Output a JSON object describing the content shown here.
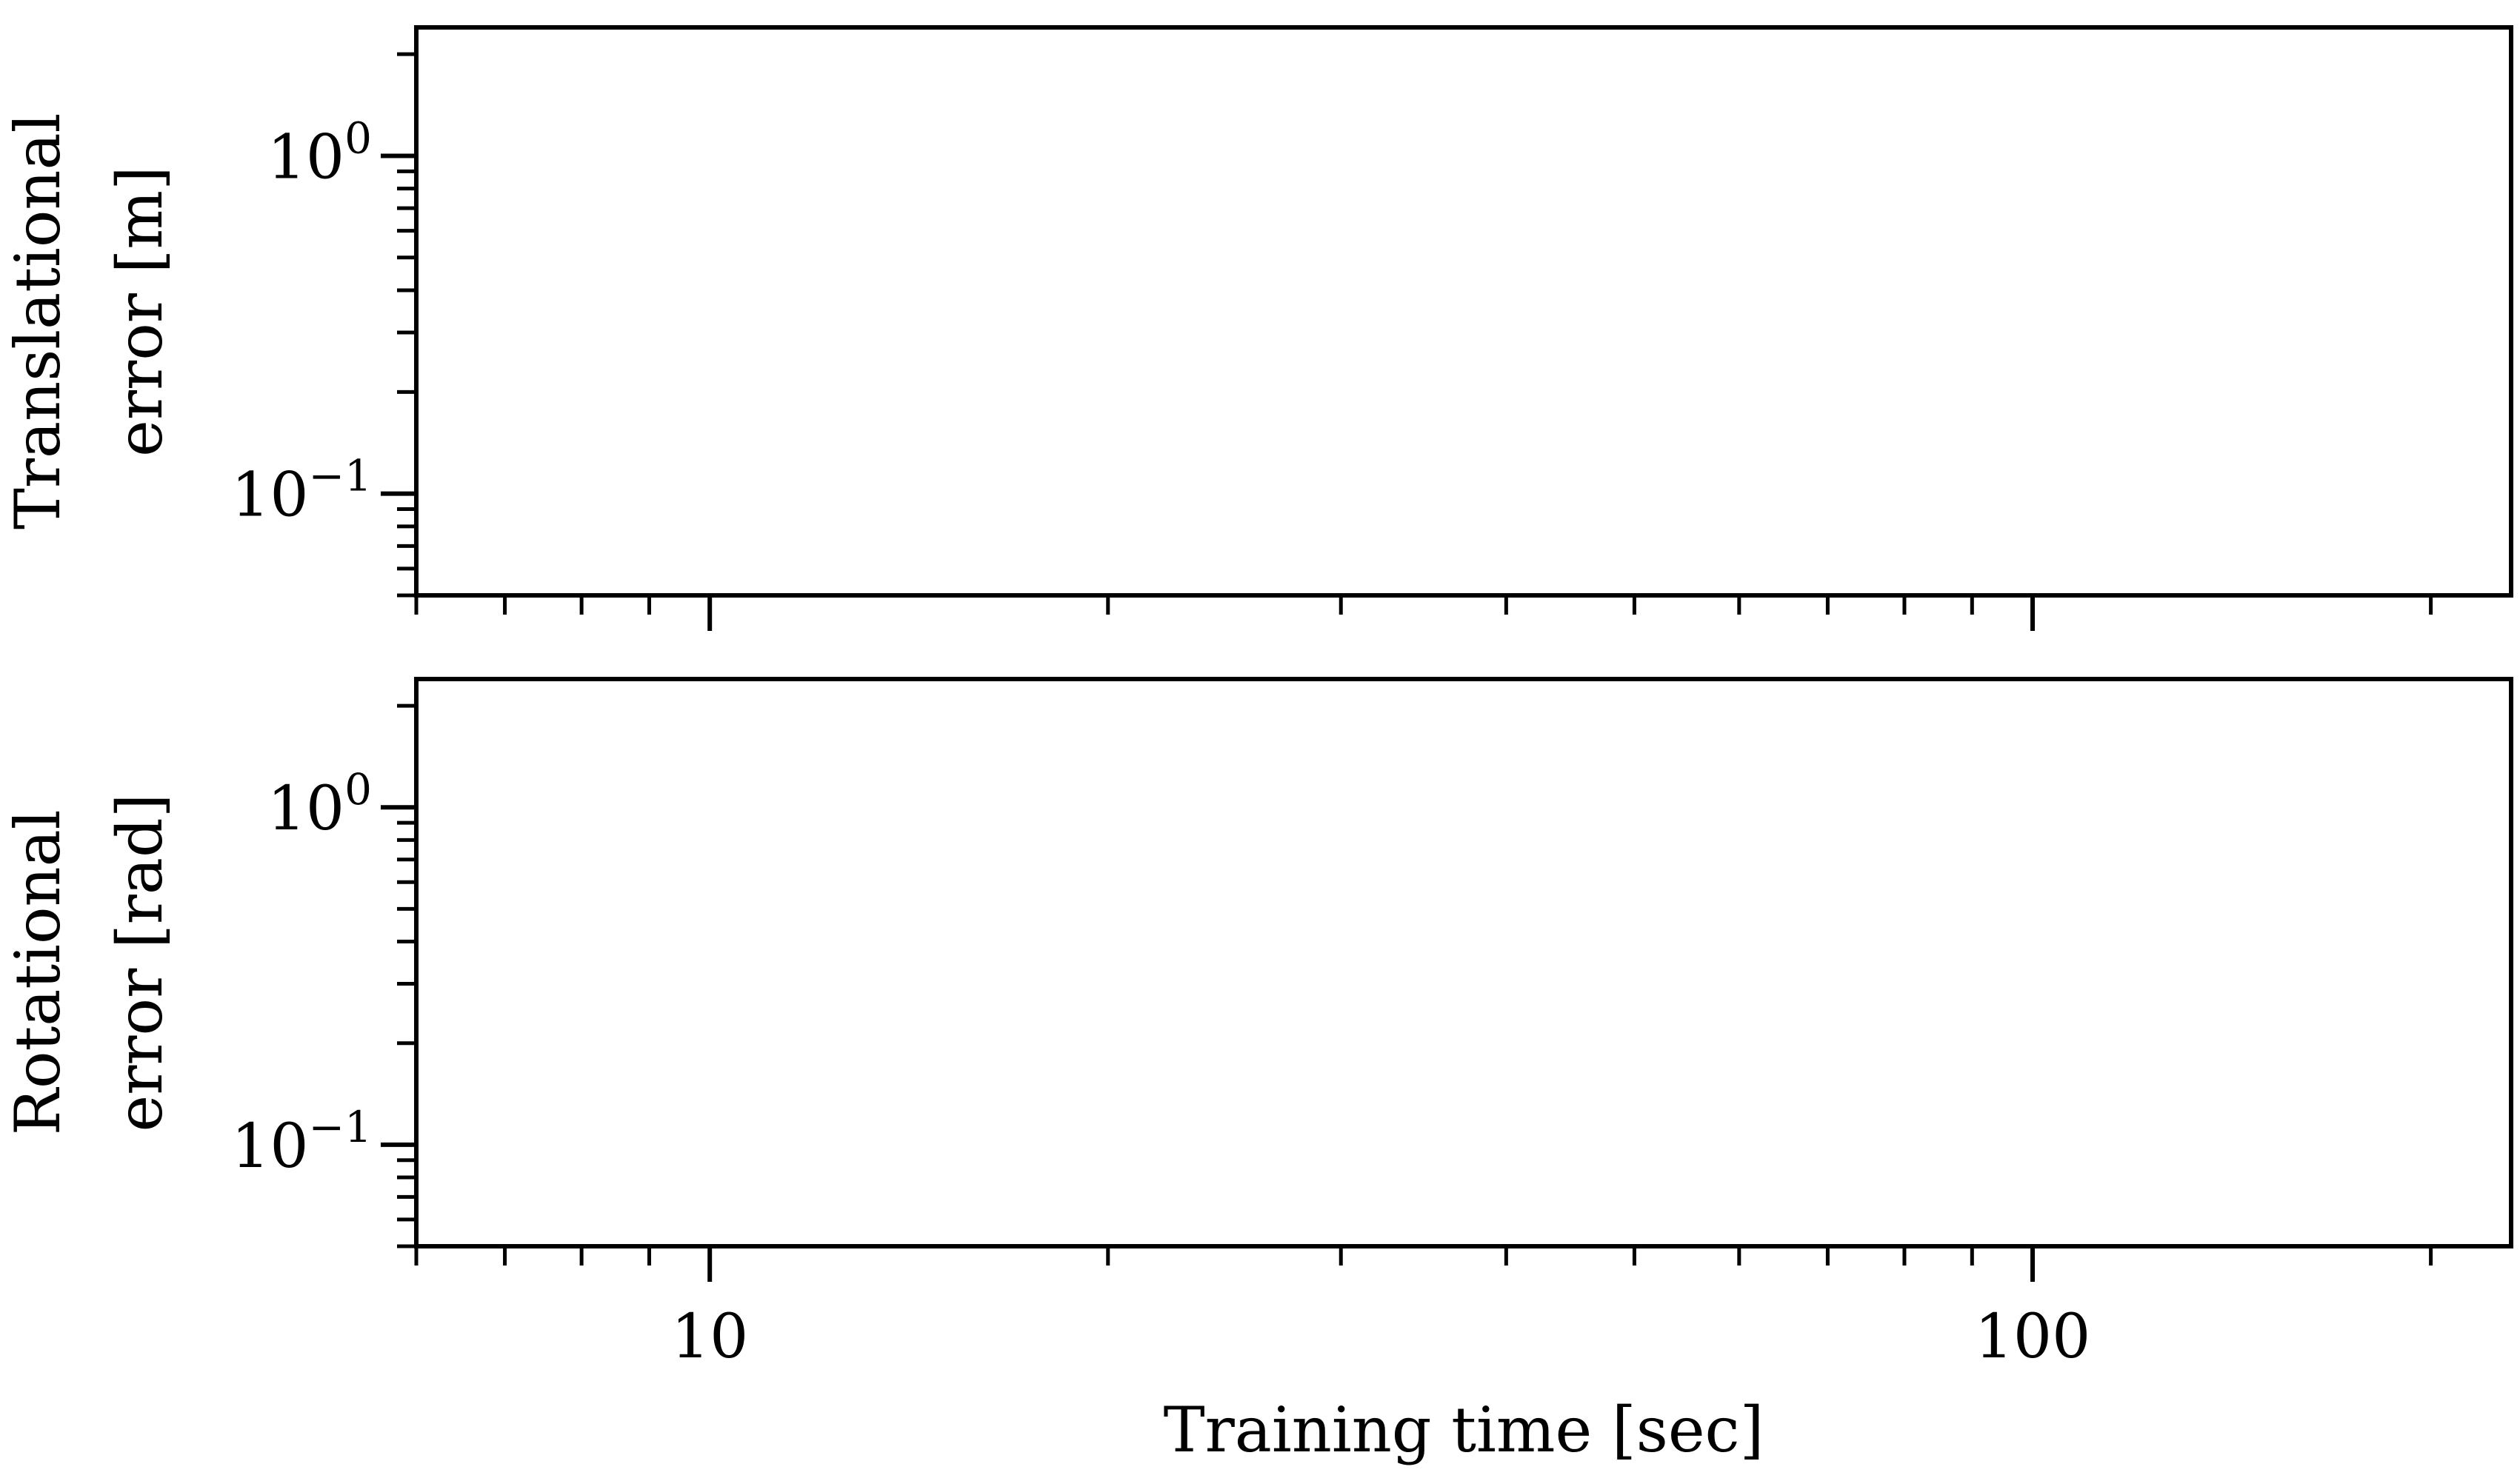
{
  "figure": {
    "xlabel": "Training time [sec]"
  },
  "chart_data": [
    {
      "type": "line",
      "title": "",
      "ylabel_lines": [
        "Translational",
        "error [m]"
      ],
      "xlabel": "",
      "xscale": "log",
      "yscale": "log",
      "xlim": [
        6,
        230
      ],
      "ylim": [
        0.05,
        2.4
      ],
      "xticks": [
        10,
        100
      ],
      "yticks": [
        {
          "base": "10",
          "exp": "0",
          "value": 1
        },
        {
          "base": "10",
          "exp": "−1",
          "value": 0.1
        }
      ],
      "show_x_tick_labels": false,
      "grid": false,
      "series": []
    },
    {
      "type": "line",
      "title": "",
      "ylabel_lines": [
        "Rotational",
        "error [rad]"
      ],
      "xlabel": "Training time [sec]",
      "xscale": "log",
      "yscale": "log",
      "xlim": [
        6,
        230
      ],
      "ylim": [
        0.05,
        2.4
      ],
      "xticks": [
        10,
        100
      ],
      "xtick_labels": [
        "10",
        "100"
      ],
      "yticks": [
        {
          "base": "10",
          "exp": "0",
          "value": 1
        },
        {
          "base": "10",
          "exp": "−1",
          "value": 0.1
        }
      ],
      "show_x_tick_labels": true,
      "grid": false,
      "series": []
    }
  ]
}
